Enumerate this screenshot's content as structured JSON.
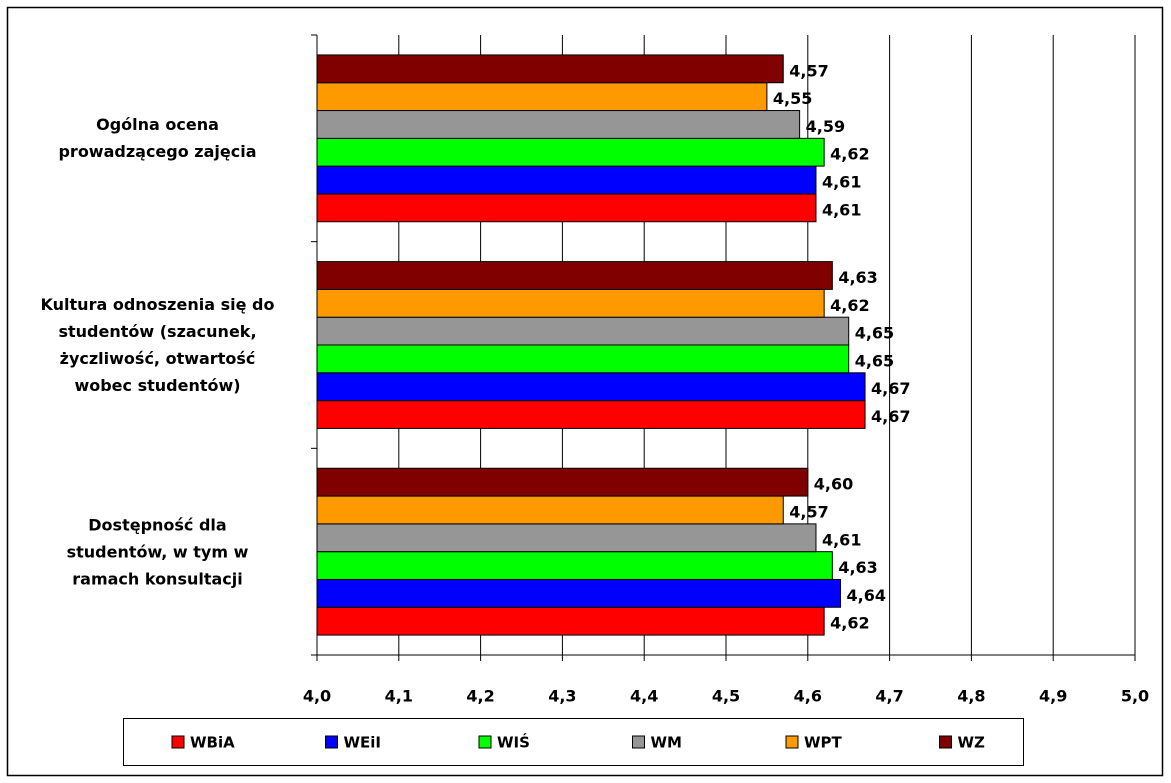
{
  "chart_data": {
    "type": "bar",
    "orientation": "horizontal",
    "categories": [
      "Ogólna ocena\nprowadzącego zajęcia",
      "Kultura odnoszenia się do\nstudentów (szacunek,\nżyczliwość, otwartość\nwobec studentów)",
      "Dostępność dla\nstudentów, w tym w\nramach konsultacji"
    ],
    "series": [
      {
        "name": "WBiA",
        "color": "#ff0000",
        "values": [
          4.61,
          4.67,
          4.62
        ],
        "value_labels": [
          "4,61",
          "4,67",
          "4,62"
        ]
      },
      {
        "name": "WEiI",
        "color": "#0000ff",
        "values": [
          4.61,
          4.67,
          4.64
        ],
        "value_labels": [
          "4,61",
          "4,67",
          "4,64"
        ]
      },
      {
        "name": "WIŚ",
        "color": "#00ff00",
        "values": [
          4.62,
          4.65,
          4.63
        ],
        "value_labels": [
          "4,62",
          "4,65",
          "4,63"
        ]
      },
      {
        "name": "WM",
        "color": "#969696",
        "values": [
          4.59,
          4.65,
          4.61
        ],
        "value_labels": [
          "4,59",
          "4,65",
          "4,61"
        ]
      },
      {
        "name": "WPT",
        "color": "#ff9900",
        "values": [
          4.55,
          4.62,
          4.57
        ],
        "value_labels": [
          "4,55",
          "4,62",
          "4,57"
        ]
      },
      {
        "name": "WZ",
        "color": "#800000",
        "values": [
          4.57,
          4.63,
          4.6
        ],
        "value_labels": [
          "4,57",
          "4,63",
          "4,60"
        ]
      }
    ],
    "xlim": [
      4.0,
      5.0
    ],
    "xticks": [
      {
        "value": 4.0,
        "label": "4,0"
      },
      {
        "value": 4.1,
        "label": "4,1"
      },
      {
        "value": 4.2,
        "label": "4,2"
      },
      {
        "value": 4.3,
        "label": "4,3"
      },
      {
        "value": 4.4,
        "label": "4,4"
      },
      {
        "value": 4.5,
        "label": "4,5"
      },
      {
        "value": 4.6,
        "label": "4,6"
      },
      {
        "value": 4.7,
        "label": "4,7"
      },
      {
        "value": 4.8,
        "label": "4,8"
      },
      {
        "value": 4.9,
        "label": "4,9"
      },
      {
        "value": 5.0,
        "label": "5,0"
      }
    ],
    "grid": true,
    "legend": "bottom"
  }
}
